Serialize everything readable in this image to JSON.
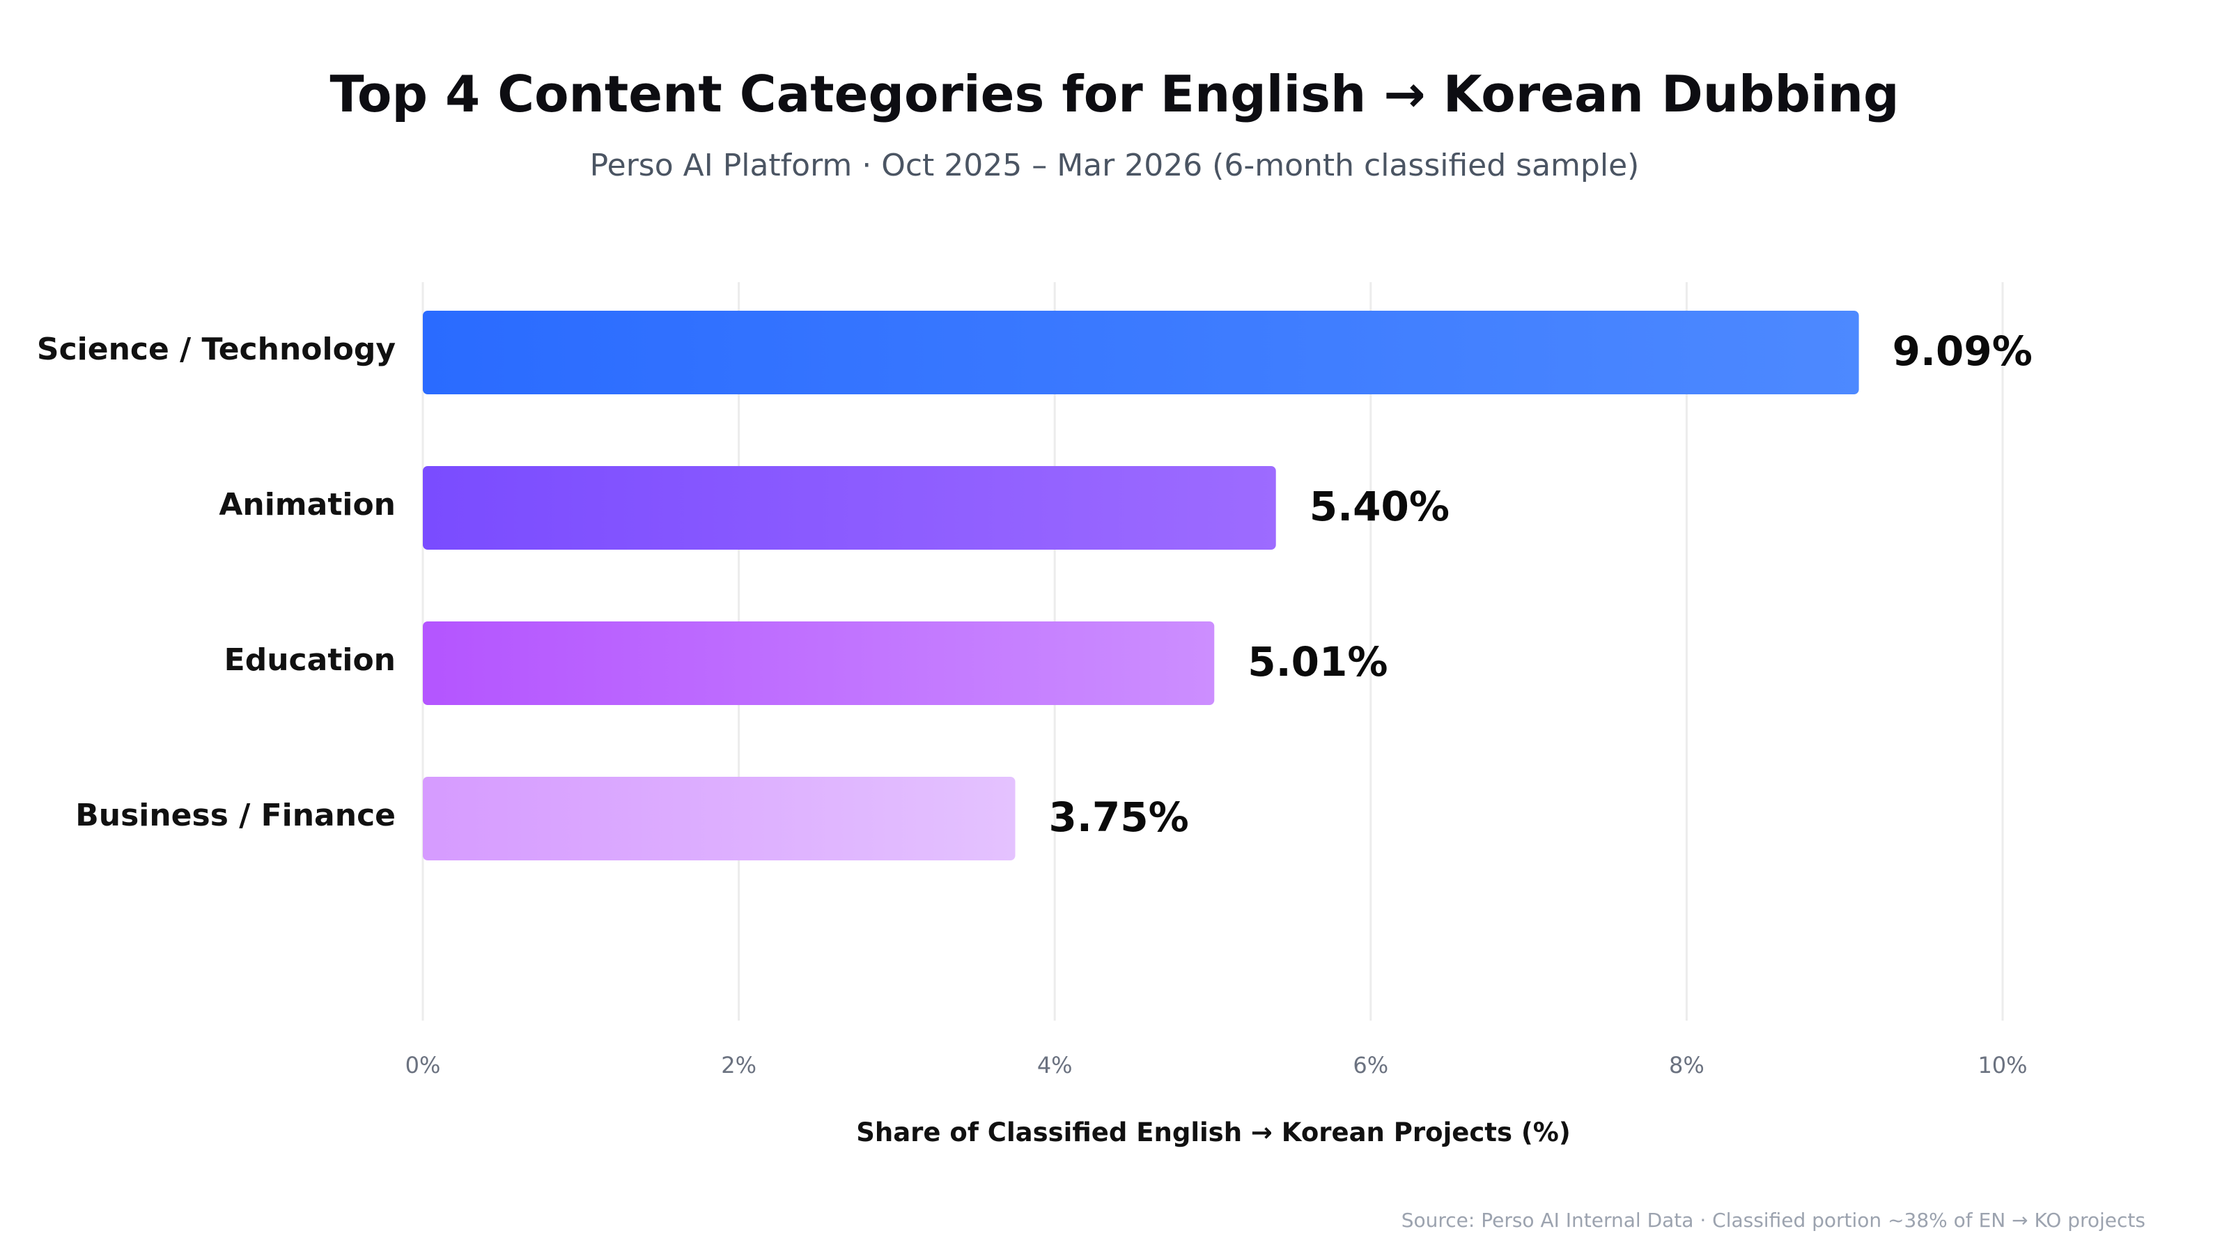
{
  "chart_data": {
    "type": "bar",
    "orientation": "horizontal",
    "title": "Top 4 Content Categories for English → Korean Dubbing",
    "subtitle": "Perso AI Platform · Oct 2025 – Mar 2026 (6-month classified sample)",
    "categories": [
      "Science / Technology",
      "Animation",
      "Education",
      "Business / Finance"
    ],
    "values": [
      9.09,
      5.4,
      5.01,
      3.75
    ],
    "value_labels": [
      "9.09%",
      "5.40%",
      "5.01%",
      "3.75%"
    ],
    "xlabel": "Share of Classified English → Korean Projects (%)",
    "ylabel": "",
    "xlim": [
      0,
      10
    ],
    "xticks": [
      0,
      2,
      4,
      6,
      8,
      10
    ],
    "xtick_labels": [
      "0%",
      "2%",
      "4%",
      "6%",
      "8%",
      "10%"
    ],
    "grid": "vertical",
    "legend": "none",
    "source": "Source: Perso AI Internal Data · Classified portion ~38% of EN → KO projects",
    "bar_colors": [
      [
        "#2a6bff",
        "#4d89ff"
      ],
      [
        "#7a4cff",
        "#9d6bff"
      ],
      [
        "#b455ff",
        "#cc8eff"
      ],
      [
        "#d69bff",
        "#e4c2ff"
      ]
    ]
  }
}
